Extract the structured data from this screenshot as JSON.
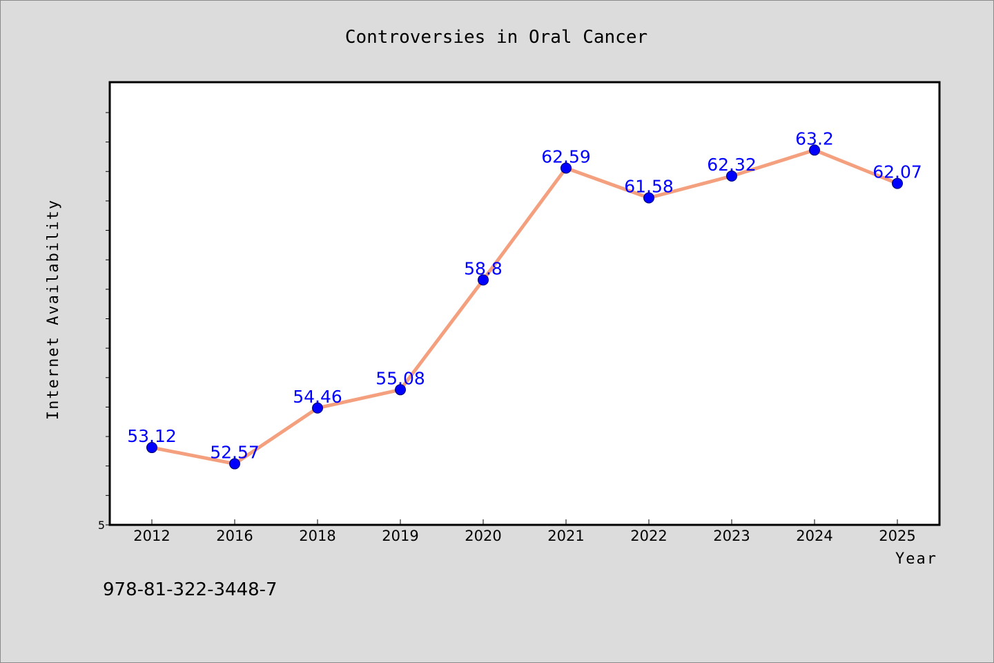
{
  "colors": {
    "background": "#dcdcdc",
    "plot_background": "#ffffff",
    "line": "#f4a07e",
    "marker": "#0000ff",
    "data_label": "#0000ff"
  },
  "footer_text": "978-81-322-3448-7",
  "chart_data": {
    "type": "line",
    "title": "Controversies in Oral Cancer",
    "xlabel": "Year",
    "ylabel": "Internet Availability",
    "categories": [
      "2012",
      "2016",
      "2018",
      "2019",
      "2020",
      "2021",
      "2022",
      "2023",
      "2024",
      "2025"
    ],
    "series": [
      {
        "values": [
          53.12,
          52.57,
          54.46,
          55.08,
          58.8,
          62.59,
          61.58,
          62.32,
          63.2,
          62.07
        ],
        "labels": [
          "53.12",
          "52.57",
          "54.46",
          "55.08",
          "58.8",
          "62.59",
          "61.58",
          "62.32",
          "63.2",
          "62.07"
        ]
      }
    ],
    "ylim": [
      50.5,
      65.5
    ],
    "yticks_labeled": [
      "5"
    ],
    "ytick_count": 15,
    "grid": false,
    "legend": "none"
  }
}
